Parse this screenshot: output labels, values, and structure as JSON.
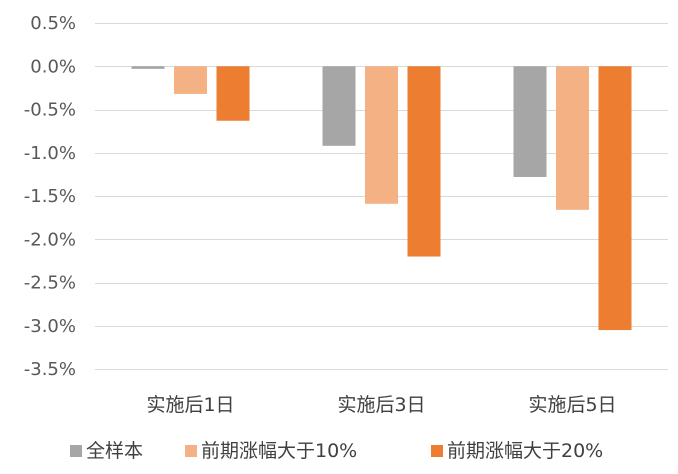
{
  "chart_data": {
    "type": "bar",
    "title": "",
    "xlabel": "",
    "ylabel": "",
    "categories": [
      "实施后1日",
      "实施后3日",
      "实施后5日"
    ],
    "series": [
      {
        "name": "全样本",
        "values": [
          -0.03,
          -0.92,
          -1.28
        ],
        "color": "#a6a6a6"
      },
      {
        "name": "前期涨幅大于10%",
        "values": [
          -0.32,
          -1.59,
          -1.66
        ],
        "color": "#f4b183"
      },
      {
        "name": "前期涨幅大于20%",
        "values": [
          -0.63,
          -2.2,
          -3.05
        ],
        "color": "#ed7d31"
      }
    ],
    "ylim": [
      -3.5,
      0.5
    ],
    "yticks": [
      0.5,
      0,
      -0.5,
      -1,
      -1.5,
      -2,
      -2.5,
      -3,
      -3.5
    ],
    "ytick_labels": [
      "0.5%",
      "0.0%",
      "-0.5%",
      "-1.0%",
      "-1.5%",
      "-2.0%",
      "-2.5%",
      "-3.0%",
      "-3.5%"
    ],
    "grid": true,
    "legend_position": "bottom"
  }
}
